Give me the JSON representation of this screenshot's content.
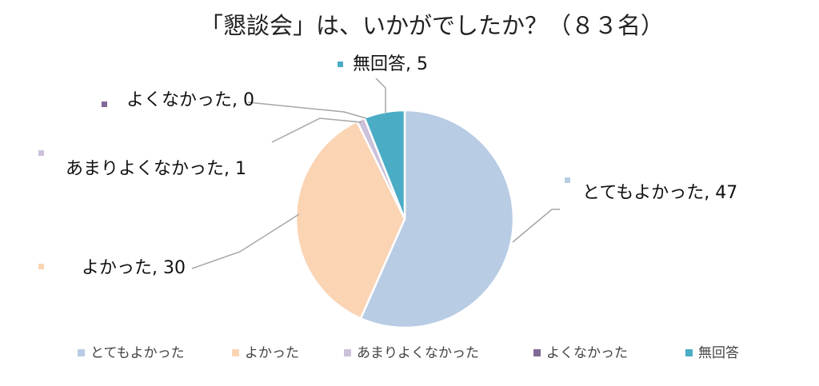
{
  "chart_data": {
    "type": "pie",
    "title": "「懇談会」は、いかがでしたか？（８３名）",
    "categories": [
      "とてもよかった",
      "よかった",
      "あまりよくなかった",
      "よくなかった",
      "無回答"
    ],
    "values": [
      47,
      30,
      1,
      0,
      5
    ],
    "colors": [
      "#b8cce4",
      "#fbd4b4",
      "#ccc1da",
      "#7f6b95",
      "#4bacc6"
    ],
    "data_labels": [
      "とてもよかった, 47",
      "よかった, 30",
      "あまりよくなかった, 1",
      "よくなかった, 0",
      "無回答, 5"
    ],
    "legend_position": "bottom"
  }
}
